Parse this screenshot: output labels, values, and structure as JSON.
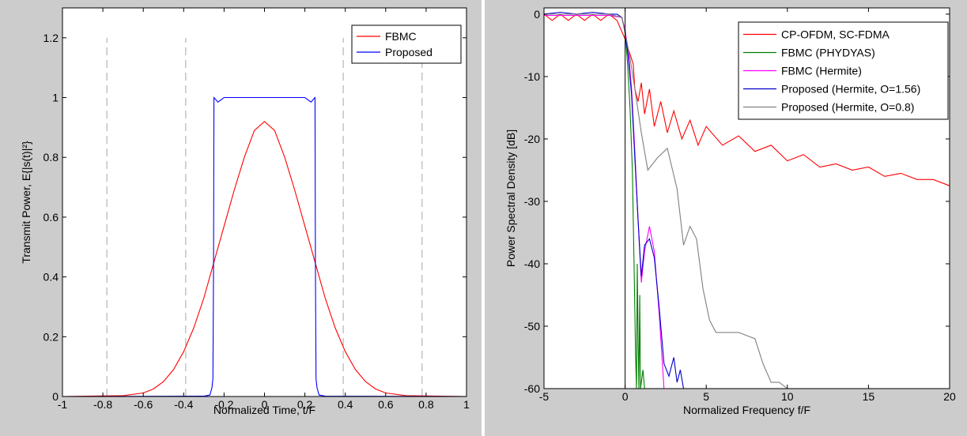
{
  "chart_data": [
    {
      "type": "line",
      "title": "",
      "xlabel": "Normalized Time, t/F",
      "ylabel": "Transmit Power, E{|s(t)|²}",
      "xlim": [
        -1,
        1
      ],
      "ylim": [
        0,
        1.3
      ],
      "xticks": [
        "-1",
        "-0.8",
        "-0.6",
        "-0.4",
        "-0.2",
        "0",
        "0.2",
        "0.4",
        "0.6",
        "0.8",
        "1"
      ],
      "yticks": [
        "0",
        "0.2",
        "0.4",
        "0.6",
        "0.8",
        "1",
        "1.2"
      ],
      "xtick_values": [
        -1,
        -0.8,
        -0.6,
        -0.4,
        -0.2,
        0,
        0.2,
        0.4,
        0.6,
        0.8,
        1
      ],
      "ytick_values": [
        0,
        0.2,
        0.4,
        0.6,
        0.8,
        1,
        1.2
      ],
      "legend_position": "top-right",
      "reference_lines": {
        "color": "#bbbbbb",
        "style": "dashed",
        "x": [
          -0.78,
          -0.39,
          0.39,
          0.78
        ],
        "y_range": [
          0,
          1.2
        ]
      },
      "series": [
        {
          "name": "FBMC",
          "color": "#ff0000",
          "points": [
            [
              -1,
              0
            ],
            [
              -0.7,
              0.003
            ],
            [
              -0.6,
              0.012
            ],
            [
              -0.55,
              0.025
            ],
            [
              -0.5,
              0.05
            ],
            [
              -0.45,
              0.09
            ],
            [
              -0.4,
              0.15
            ],
            [
              -0.35,
              0.23
            ],
            [
              -0.3,
              0.33
            ],
            [
              -0.25,
              0.45
            ],
            [
              -0.2,
              0.57
            ],
            [
              -0.15,
              0.69
            ],
            [
              -0.1,
              0.8
            ],
            [
              -0.05,
              0.89
            ],
            [
              0,
              0.92
            ],
            [
              0.05,
              0.89
            ],
            [
              0.1,
              0.8
            ],
            [
              0.15,
              0.69
            ],
            [
              0.2,
              0.57
            ],
            [
              0.25,
              0.45
            ],
            [
              0.3,
              0.33
            ],
            [
              0.35,
              0.23
            ],
            [
              0.4,
              0.15
            ],
            [
              0.45,
              0.09
            ],
            [
              0.5,
              0.05
            ],
            [
              0.55,
              0.025
            ],
            [
              0.6,
              0.012
            ],
            [
              0.7,
              0.003
            ],
            [
              1,
              0
            ]
          ]
        },
        {
          "name": "Proposed",
          "color": "#0000ff",
          "points": [
            [
              -1,
              0
            ],
            [
              -0.3,
              0.001
            ],
            [
              -0.27,
              0.005
            ],
            [
              -0.26,
              0.03
            ],
            [
              -0.255,
              0.06
            ],
            [
              -0.252,
              0.45
            ],
            [
              -0.25,
              1.0
            ],
            [
              -0.23,
              0.985
            ],
            [
              -0.2,
              1.0
            ],
            [
              -0.1,
              1.0
            ],
            [
              0,
              1.0
            ],
            [
              0.1,
              1.0
            ],
            [
              0.2,
              1.0
            ],
            [
              0.23,
              0.985
            ],
            [
              0.25,
              1.0
            ],
            [
              0.252,
              0.45
            ],
            [
              0.255,
              0.06
            ],
            [
              0.26,
              0.03
            ],
            [
              0.27,
              0.005
            ],
            [
              0.3,
              0.001
            ],
            [
              1,
              0
            ]
          ]
        }
      ]
    },
    {
      "type": "line",
      "title": "",
      "xlabel": "Normalized Frequency f/F",
      "ylabel": "Power Spectral Density  [dB]",
      "xlim": [
        -5,
        20
      ],
      "ylim": [
        -60,
        1
      ],
      "xticks": [
        "-5",
        "0",
        "5",
        "10",
        "15",
        "20"
      ],
      "yticks": [
        "0",
        "-10",
        "-20",
        "-30",
        "-40",
        "-50",
        "-60"
      ],
      "xtick_values": [
        -5,
        0,
        5,
        10,
        15,
        20
      ],
      "ytick_values": [
        0,
        -10,
        -20,
        -30,
        -40,
        -50,
        -60
      ],
      "legend_position": "top-right",
      "series": [
        {
          "name": "CP-OFDM, SC-FDMA",
          "color": "#ff0000",
          "points": [
            [
              -5,
              0
            ],
            [
              -4.5,
              -1
            ],
            [
              -4,
              0
            ],
            [
              -3.5,
              -1
            ],
            [
              -3,
              0
            ],
            [
              -2.5,
              -1
            ],
            [
              -2,
              0
            ],
            [
              -1.5,
              -1
            ],
            [
              -1,
              0
            ],
            [
              -0.5,
              -1
            ],
            [
              0,
              -4
            ],
            [
              0.5,
              -8
            ],
            [
              0.6,
              -12
            ],
            [
              0.8,
              -14
            ],
            [
              1,
              -11
            ],
            [
              1.2,
              -16
            ],
            [
              1.5,
              -12
            ],
            [
              1.8,
              -18
            ],
            [
              2.2,
              -14
            ],
            [
              2.6,
              -19
            ],
            [
              3,
              -15.5
            ],
            [
              3.5,
              -20
            ],
            [
              4,
              -17
            ],
            [
              4.5,
              -21
            ],
            [
              5,
              -18
            ],
            [
              6,
              -21
            ],
            [
              7,
              -19.5
            ],
            [
              8,
              -22
            ],
            [
              9,
              -21
            ],
            [
              10,
              -23.5
            ],
            [
              11,
              -22.5
            ],
            [
              12,
              -24.5
            ],
            [
              13,
              -24
            ],
            [
              14,
              -25
            ],
            [
              15,
              -24.5
            ],
            [
              16,
              -26
            ],
            [
              17,
              -25.5
            ],
            [
              18,
              -26.5
            ],
            [
              19,
              -26.5
            ],
            [
              20,
              -27.5
            ]
          ]
        },
        {
          "name": "FBMC (PHYDYAS)",
          "color": "#008000",
          "points": [
            [
              -5,
              -0.2
            ],
            [
              -1,
              -0.2
            ],
            [
              -0.2,
              -0.5
            ],
            [
              0,
              -3
            ],
            [
              0.15,
              -8
            ],
            [
              0.3,
              -15
            ],
            [
              0.45,
              -25
            ],
            [
              0.55,
              -40
            ],
            [
              0.65,
              -55
            ],
            [
              0.7,
              -60
            ],
            [
              0.75,
              -40
            ],
            [
              0.8,
              -52
            ],
            [
              0.85,
              -60
            ],
            [
              0.9,
              -45
            ],
            [
              0.95,
              -60
            ],
            [
              1.1,
              -57
            ],
            [
              1.2,
              -60
            ]
          ]
        },
        {
          "name": "FBMC (Hermite)",
          "color": "#ff00ff",
          "points": [
            [
              -5,
              -0.2
            ],
            [
              -1,
              -0.2
            ],
            [
              -0.2,
              -0.5
            ],
            [
              0,
              -2.5
            ],
            [
              0.2,
              -6
            ],
            [
              0.4,
              -12
            ],
            [
              0.6,
              -22
            ],
            [
              0.8,
              -33
            ],
            [
              1,
              -43
            ],
            [
              1.2,
              -38
            ],
            [
              1.5,
              -34
            ],
            [
              1.8,
              -38
            ],
            [
              2.1,
              -48
            ],
            [
              2.4,
              -60
            ]
          ]
        },
        {
          "name": "Proposed (Hermite, O=1.56)",
          "color": "#0000cc",
          "points": [
            [
              -5,
              0
            ],
            [
              -4,
              0.3
            ],
            [
              -3,
              0
            ],
            [
              -2,
              0.3
            ],
            [
              -1,
              0
            ],
            [
              -0.5,
              0
            ],
            [
              -0.2,
              -0.5
            ],
            [
              0,
              -3
            ],
            [
              0.2,
              -7
            ],
            [
              0.4,
              -13
            ],
            [
              0.6,
              -23
            ],
            [
              0.8,
              -33
            ],
            [
              1,
              -42
            ],
            [
              1.2,
              -37
            ],
            [
              1.5,
              -36
            ],
            [
              1.8,
              -39
            ],
            [
              2.1,
              -47
            ],
            [
              2.4,
              -56
            ],
            [
              2.7,
              -58
            ],
            [
              3,
              -55
            ],
            [
              3.2,
              -59
            ],
            [
              3.4,
              -57
            ],
            [
              3.6,
              -60
            ]
          ]
        },
        {
          "name": "Proposed (Hermite, O=0.8)",
          "color": "#808080",
          "points": [
            [
              -5,
              0
            ],
            [
              -1,
              0
            ],
            [
              -0.2,
              -0.5
            ],
            [
              0,
              -3
            ],
            [
              0.3,
              -7
            ],
            [
              0.6,
              -12
            ],
            [
              1,
              -19
            ],
            [
              1.4,
              -25
            ],
            [
              2,
              -23
            ],
            [
              2.6,
              -21.5
            ],
            [
              3.2,
              -28
            ],
            [
              3.6,
              -37
            ],
            [
              4,
              -34
            ],
            [
              4.4,
              -36
            ],
            [
              4.8,
              -44
            ],
            [
              5.2,
              -49
            ],
            [
              5.6,
              -51
            ],
            [
              6,
              -51
            ],
            [
              7,
              -51
            ],
            [
              8,
              -52
            ],
            [
              8.5,
              -56
            ],
            [
              9,
              -59
            ],
            [
              9.5,
              -59
            ],
            [
              10,
              -60
            ]
          ]
        }
      ]
    }
  ]
}
